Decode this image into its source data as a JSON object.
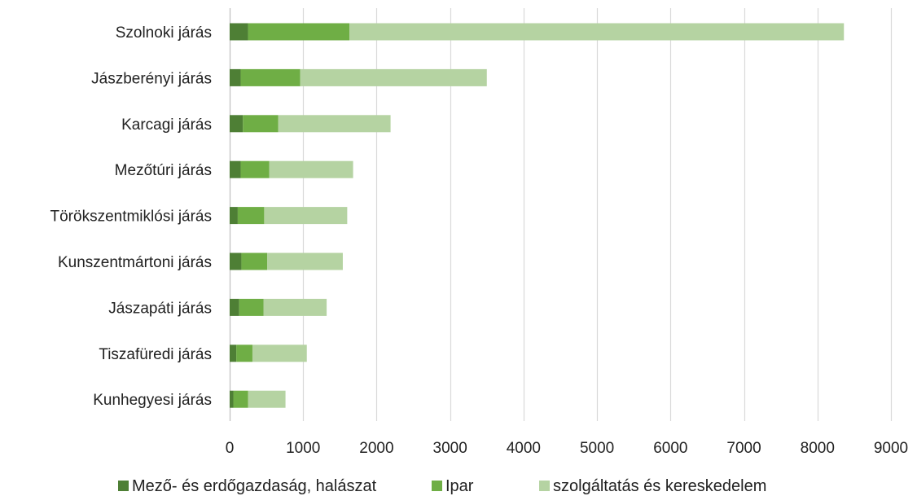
{
  "chart_data": {
    "type": "bar",
    "orientation": "horizontal",
    "stacked": true,
    "title": "",
    "xlabel": "",
    "ylabel": "",
    "categories": [
      "Szolnoki járás",
      "Jászberényi járás",
      "Karcagi járás",
      "Mezőtúri járás",
      "Törökszentmiklósi járás",
      "Kunszentmártoni járás",
      "Jászapáti járás",
      "Tiszafüredi járás",
      "Kunhegyesi járás"
    ],
    "series": [
      {
        "name": "Mező- és erdőgazdaság, halászat",
        "color": "#4e7f35",
        "values": [
          250,
          150,
          180,
          150,
          110,
          160,
          130,
          90,
          50
        ]
      },
      {
        "name": "Ipar",
        "color": "#6fae45",
        "values": [
          1380,
          810,
          480,
          390,
          360,
          350,
          330,
          220,
          200
        ]
      },
      {
        "name": "szolgáltatás és kereskedelem",
        "color": "#b5d3a2",
        "values": [
          6730,
          2540,
          1530,
          1140,
          1130,
          1030,
          860,
          740,
          510
        ]
      }
    ],
    "xlim": [
      0,
      9000
    ],
    "xticks": [
      0,
      1000,
      2000,
      3000,
      4000,
      5000,
      6000,
      7000,
      8000,
      9000
    ],
    "grid": "vertical",
    "legend_position": "bottom"
  }
}
